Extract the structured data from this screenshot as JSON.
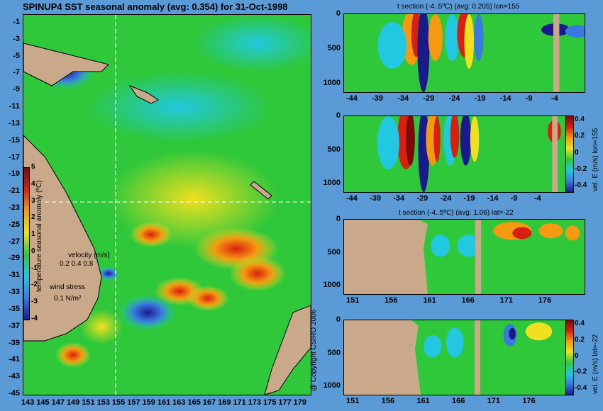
{
  "main_title": "SPINUP4 SST seasonal anomaly (avg: 0.354) for 31-Oct-1998",
  "copyright": "@ Copyright CSIRO 2006",
  "colors": {
    "land": "#c9a98a",
    "background": "#5a9ad6",
    "deep_blue": "#1a1a8c",
    "blue": "#3a7ae0",
    "cyan": "#22c8e0",
    "green": "#2ec83a",
    "yellow": "#f0e020",
    "orange": "#f59a10",
    "red": "#d82010",
    "dark_red": "#7a0a0a"
  },
  "map": {
    "ylabels": [
      "-1",
      "-3",
      "-5",
      "-7",
      "-9",
      "-11",
      "-13",
      "-15",
      "-17",
      "-19",
      "-21",
      "-23",
      "-25",
      "-27",
      "-29",
      "-31",
      "-33",
      "-35",
      "-37",
      "-39",
      "-41",
      "-43",
      "-45"
    ],
    "xlabels": [
      "143",
      "145",
      "147",
      "149",
      "151",
      "153",
      "155",
      "157",
      "159",
      "161",
      "163",
      "165",
      "167",
      "169",
      "171",
      "173",
      "175",
      "177",
      "179"
    ],
    "colorbar_label": "temperature seasonal anomaly (ºC)",
    "colorbar_ticks": [
      "5",
      "4",
      "3",
      "2",
      "1",
      "0",
      "-1",
      "-2",
      "-3",
      "-4"
    ],
    "velocity_label": "velocity (m/s)",
    "velocity_values": "0.2 0.4 0.8",
    "wind_label": "wind stress",
    "wind_value": "0.1 N/m²"
  },
  "chart_data": [
    {
      "type": "heatmap",
      "title": "t section (-4..5ºC) (avg: 0.205) lon=155",
      "xlabels": [
        "-44",
        "-39",
        "-34",
        "-29",
        "-24",
        "-19",
        "-14",
        "-9",
        "-4"
      ],
      "ylabels": [
        "0",
        "500",
        "1000"
      ],
      "ylim": [
        1050,
        0
      ],
      "xlim": [
        -45,
        -1
      ]
    },
    {
      "type": "heatmap",
      "title": "",
      "xlabels": [
        "-44",
        "-39",
        "-34",
        "-29",
        "-24",
        "-19",
        "-14",
        "-9",
        "-4"
      ],
      "ylabels": [
        "0",
        "500",
        "1000"
      ],
      "ylim": [
        1050,
        0
      ],
      "colorbar_label": "vel. E (m/s) lon=155",
      "colorbar_ticks": [
        "0.4",
        "0.2",
        "0",
        "-0.2",
        "-0.4"
      ]
    },
    {
      "type": "heatmap",
      "title": "t section (-4..5ºC) (avg: 1.06) lat=-22",
      "xlabels": [
        "151",
        "156",
        "161",
        "166",
        "171",
        "176"
      ],
      "ylabels": [
        "0",
        "500",
        "1000"
      ],
      "ylim": [
        1050,
        0
      ],
      "xlim": [
        150,
        180
      ]
    },
    {
      "type": "heatmap",
      "title": "",
      "xlabels": [
        "151",
        "156",
        "161",
        "166",
        "171",
        "176"
      ],
      "ylabels": [
        "0",
        "500",
        "1000"
      ],
      "ylim": [
        1050,
        0
      ],
      "colorbar_label": "vel. E (m/s) lat=-22",
      "colorbar_ticks": [
        "0.4",
        "0.2",
        "0",
        "-0.2",
        "-0.4"
      ]
    }
  ]
}
